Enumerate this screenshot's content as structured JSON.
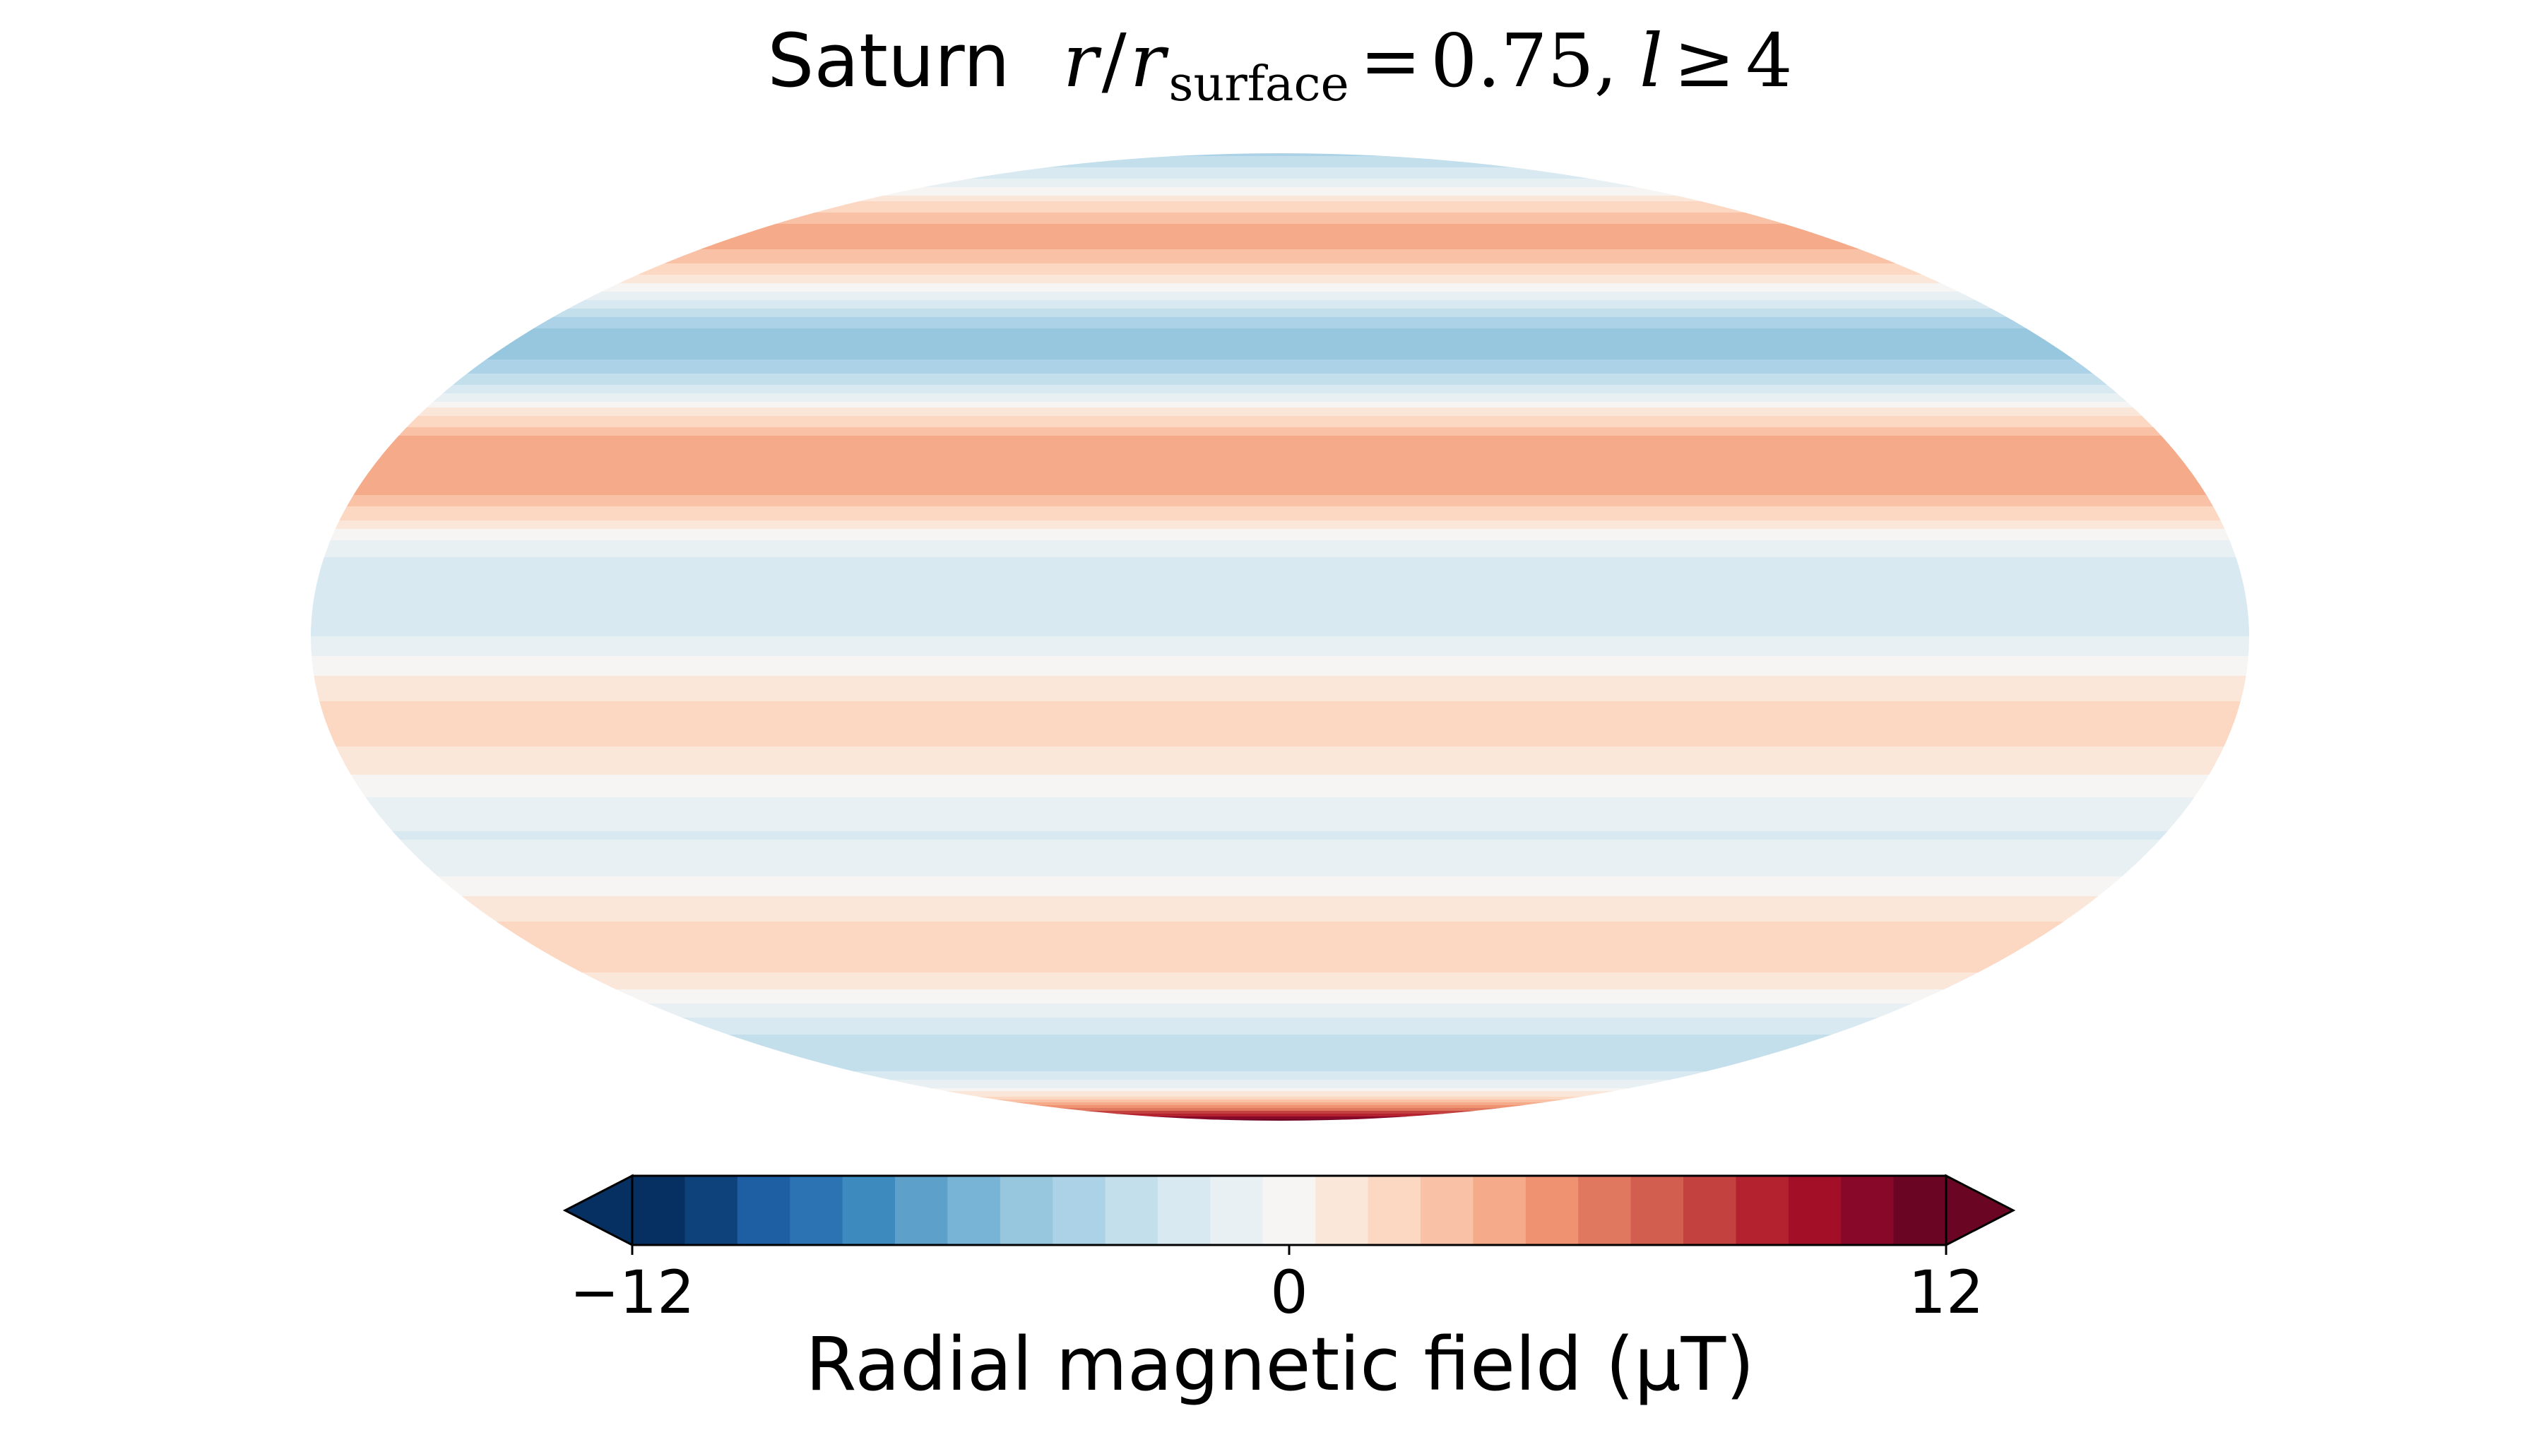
{
  "chart_data": {
    "type": "heatmap",
    "projection": "mollweide",
    "title": {
      "planet": "Saturn",
      "ratio_var": "r",
      "ratio_den_var": "r",
      "ratio_sub": "surface",
      "eq": "=",
      "ratio_value": "0.75,",
      "deg_var": "l",
      "deg_op": "≥",
      "deg_value": "4"
    },
    "colorbar": {
      "label": "Radial magnetic field (μT)",
      "min": -12,
      "max": 12,
      "ticks": [
        {
          "value": -12,
          "label": "−12"
        },
        {
          "value": 0,
          "label": "0"
        },
        {
          "value": 12,
          "label": "12"
        }
      ],
      "extend": "both",
      "colors": [
        "#053061",
        "#0d427a",
        "#1e5fa4",
        "#2b73b3",
        "#3d8abe",
        "#5da1cb",
        "#78b4d6",
        "#96c7df",
        "#abd2e6",
        "#c3dfec",
        "#d8e9f1",
        "#e9f0f4",
        "#f6f5f4",
        "#fbe6da",
        "#fcd7c2",
        "#f9c2a7",
        "#f5aa89",
        "#ee9271",
        "#e07860",
        "#d15e4f",
        "#c3413e",
        "#b5222f",
        "#a20f27",
        "#88082a",
        "#6a0624"
      ],
      "under_color": "#053061",
      "over_color": "#6a0624"
    },
    "latitude_profile": {
      "description_unit": "μT",
      "lat_deg": [
        90,
        86,
        82,
        78,
        74,
        70,
        66,
        62,
        58,
        54,
        50,
        46,
        42,
        38,
        34,
        30,
        26,
        22,
        18,
        14,
        10,
        6,
        2,
        -2,
        -6,
        -10,
        -14,
        -18,
        -22,
        -26,
        -30,
        -34,
        -38,
        -42,
        -46,
        -50,
        -54,
        -58,
        -62,
        -66,
        -70,
        -74,
        -78,
        -82,
        -86,
        -90
      ],
      "value": [
        -3.5,
        -3.0,
        -2.0,
        -0.5,
        1.5,
        3.2,
        3.8,
        3.0,
        1.2,
        -1.5,
        -4.0,
        -5.0,
        -4.0,
        -1.5,
        1.5,
        3.8,
        4.3,
        3.5,
        1.5,
        -0.8,
        -2.0,
        -2.4,
        -2.0,
        -0.8,
        0.6,
        1.5,
        1.8,
        1.2,
        0.2,
        -0.9,
        -1.5,
        -1.3,
        -0.3,
        0.9,
        1.7,
        1.9,
        1.4,
        0.2,
        -1.3,
        -2.4,
        -2.9,
        -2.4,
        -0.5,
        2.5,
        8.0,
        12.5
      ]
    }
  }
}
